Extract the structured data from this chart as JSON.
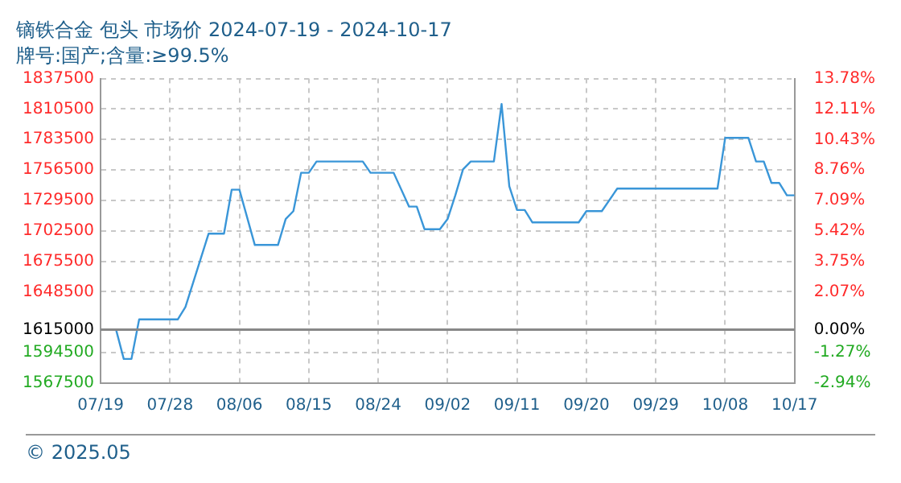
{
  "chart_data": {
    "type": "line",
    "title": "镝铁合金 包头 市场价 2024-07-19 - 2024-10-17",
    "subtitle": "牌号:国产;含量:≥99.5%",
    "x": [
      "--07-19",
      "--07-21",
      "--07-22",
      "--07-23",
      "--07-24",
      "--07-29",
      "--07-30",
      "--08-02",
      "--08-04",
      "--08-05",
      "--08-06",
      "--08-08",
      "--08-11",
      "--08-12",
      "--08-13",
      "--08-14",
      "--08-15",
      "--08-16",
      "--08-22",
      "--08-23",
      "--08-26",
      "--08-28",
      "--08-29",
      "--08-30",
      "--09-01",
      "--09-02",
      "--09-03",
      "--09-04",
      "--09-05",
      "--09-08",
      "--09-09",
      "--09-10",
      "--09-11",
      "--09-12",
      "--09-13",
      "--09-19",
      "--09-20",
      "--09-22",
      "--09-24",
      "--10-07",
      "--10-08",
      "--10-11",
      "--10-12",
      "--10-13",
      "--10-14",
      "--10-15",
      "--10-16",
      "--10-17"
    ],
    "series": [
      {
        "color": "#3a96d8",
        "values": [
          1615000,
          1615000,
          1589000,
          1589000,
          1624000,
          1624000,
          1635000,
          1700000,
          1700000,
          1739000,
          1739000,
          1690000,
          1690000,
          1713000,
          1720000,
          1754000,
          1754000,
          1764000,
          1764000,
          1754000,
          1754000,
          1724000,
          1724000,
          1704000,
          1704000,
          1713000,
          1734000,
          1757000,
          1764000,
          1764000,
          1815000,
          1742000,
          1721000,
          1721000,
          1710000,
          1710000,
          1720000,
          1720000,
          1740000,
          1740000,
          1785000,
          1785000,
          1764000,
          1764000,
          1745000,
          1745000,
          1734000,
          1734000
        ]
      }
    ],
    "xlim": [
      "--07-19",
      "--10-17"
    ],
    "xticks": [
      {
        "value": "--07-19",
        "label": "07/19"
      },
      {
        "value": "--07-28",
        "label": "07/28"
      },
      {
        "value": "--08-06",
        "label": "08/06"
      },
      {
        "value": "--08-15",
        "label": "08/15"
      },
      {
        "value": "--08-24",
        "label": "08/24"
      },
      {
        "value": "--09-02",
        "label": "09/02"
      },
      {
        "value": "--09-11",
        "label": "09/11"
      },
      {
        "value": "--09-20",
        "label": "09/20"
      },
      {
        "value": "--09-29",
        "label": "09/29"
      },
      {
        "value": "--10-08",
        "label": "10/08"
      },
      {
        "value": "--10-17",
        "label": "10/17"
      }
    ],
    "ylim": [
      1567500,
      1837500
    ],
    "yticks": [
      1567500,
      1594500,
      1615000,
      1648500,
      1675500,
      1702500,
      1729500,
      1756500,
      1783500,
      1810500,
      1837500
    ],
    "y2lim": [
      -2.94,
      13.78
    ],
    "y2ticks": [
      {
        "value": -2.94,
        "label": "-2.94%"
      },
      {
        "value": -1.27,
        "label": "-1.27%"
      },
      {
        "value": 0,
        "label": "0.00%"
      },
      {
        "value": 2.07,
        "label": "2.07%"
      },
      {
        "value": 3.75,
        "label": "3.75%"
      },
      {
        "value": 5.42,
        "label": "5.42%"
      },
      {
        "value": 7.09,
        "label": "7.09%"
      },
      {
        "value": 8.76,
        "label": "8.76%"
      },
      {
        "value": 10.43,
        "label": "10.43%"
      },
      {
        "value": 12.11,
        "label": "12.11%"
      },
      {
        "value": 13.78,
        "label": "13.78%"
      }
    ],
    "ref_lines": [
      {
        "axis": "y",
        "value": 1615000,
        "color": "#888888"
      }
    ],
    "annotations": [
      "© 2025.05"
    ],
    "grid": true,
    "legend": false,
    "marker": "none",
    "line_style": "solid"
  }
}
